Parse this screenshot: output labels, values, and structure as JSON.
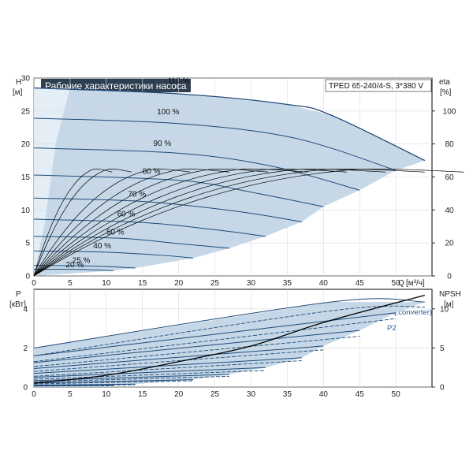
{
  "chart_data": [
    {
      "type": "line",
      "title": "Рабочие характеристики насоса",
      "model": "TPED 65-240/4-S, 3*380 V",
      "ylabel": "H",
      "yunit": "[м]",
      "ylabel_right": "eta",
      "yunit_right": "[%]",
      "xlabel": "Q",
      "xunit": "[м³/ч]",
      "xlim": [
        0,
        55
      ],
      "ylim": [
        0,
        30
      ],
      "ylim_right": [
        0,
        120
      ],
      "x_ticks": [
        "0",
        "5",
        "10",
        "15",
        "20",
        "25",
        "30",
        "35",
        "40",
        "45",
        "50"
      ],
      "y_ticks": [
        "0",
        "5",
        "10",
        "15",
        "20",
        "25",
        "30"
      ],
      "y_right_ticks": [
        "0",
        "20",
        "40",
        "60",
        "80",
        "100"
      ],
      "speed_curves": [
        {
          "label": "110 %",
          "points": [
            [
              0,
              28.5
            ],
            [
              20,
              27.6
            ],
            [
              35,
              26.0
            ],
            [
              41,
              24.4
            ],
            [
              54,
              17.5
            ]
          ]
        },
        {
          "label": "100 %",
          "points": [
            [
              0,
              23.9
            ],
            [
              20,
              23.1
            ],
            [
              36,
              20.9
            ],
            [
              50,
              16.0
            ]
          ]
        },
        {
          "label": "90 %",
          "points": [
            [
              0,
              19.4
            ],
            [
              20,
              18.6
            ],
            [
              33,
              16.6
            ],
            [
              45,
              13.0
            ]
          ]
        },
        {
          "label": "80 %",
          "points": [
            [
              0,
              15.3
            ],
            [
              20,
              14.5
            ],
            [
              30,
              12.7
            ],
            [
              40,
              10.5
            ]
          ]
        },
        {
          "label": "70 %",
          "points": [
            [
              0,
              11.8
            ],
            [
              15,
              11.3
            ],
            [
              28,
              9.8
            ],
            [
              37,
              8.2
            ]
          ]
        },
        {
          "label": "60 %",
          "points": [
            [
              0,
              8.6
            ],
            [
              15,
              8.1
            ],
            [
              25,
              7.0
            ],
            [
              32,
              6.0
            ]
          ]
        },
        {
          "label": "50 %",
          "points": [
            [
              0,
              6.0
            ],
            [
              12,
              5.7
            ],
            [
              20,
              4.9
            ],
            [
              27,
              4.2
            ]
          ]
        },
        {
          "label": "40 %",
          "points": [
            [
              0,
              3.8
            ],
            [
              10,
              3.6
            ],
            [
              18,
              3.1
            ],
            [
              22,
              2.7
            ]
          ]
        },
        {
          "label": "25 %",
          "points": [
            [
              0,
              1.6
            ],
            [
              8,
              1.5
            ],
            [
              14,
              1.2
            ]
          ]
        },
        {
          "label": "20 %",
          "points": [
            [
              0,
              1.0
            ],
            [
              6,
              1.0
            ],
            [
              11,
              0.8
            ]
          ]
        }
      ],
      "efficiency_curves_scale": [
        20,
        25,
        40,
        50,
        60,
        70,
        80,
        90,
        100,
        110
      ]
    },
    {
      "type": "line",
      "ylabel": "P",
      "yunit": "[кВт]",
      "ylabel_right": "NPSH",
      "yunit_right": "[м]",
      "xlim": [
        0,
        55
      ],
      "ylim": [
        0,
        5
      ],
      "ylim_right": [
        0,
        12.5
      ],
      "x_ticks": [
        "0",
        "5",
        "10",
        "15",
        "20",
        "25",
        "30",
        "35",
        "40",
        "45",
        "50"
      ],
      "y_ticks": [
        "0",
        "2",
        "4"
      ],
      "y_right_ticks": [
        "0",
        "5",
        "10"
      ],
      "annotations": [
        "P1 (motor+freq.converter)",
        "P2"
      ],
      "power_curves": [
        {
          "speed": "110 %",
          "p1": [
            [
              0,
              2.0
            ],
            [
              41,
              4.35
            ],
            [
              54,
              4.35
            ]
          ],
          "p2": [
            [
              0,
              1.6
            ],
            [
              41,
              3.9
            ],
            [
              54,
              4.1
            ]
          ]
        },
        {
          "speed": "100 %",
          "p1": [
            [
              0,
              1.6
            ],
            [
              50,
              3.8
            ]
          ],
          "p2": [
            [
              0,
              1.3
            ],
            [
              50,
              3.5
            ]
          ]
        },
        {
          "speed": "90 %",
          "p1": [
            [
              0,
              1.25
            ],
            [
              45,
              2.9
            ]
          ],
          "p2": [
            [
              0,
              1.05
            ],
            [
              45,
              2.6
            ]
          ]
        },
        {
          "speed": "80 %",
          "p1": [
            [
              0,
              0.95
            ],
            [
              40,
              2.1
            ]
          ],
          "p2": [
            [
              0,
              0.8
            ],
            [
              40,
              1.9
            ]
          ]
        },
        {
          "speed": "70 %",
          "p1": [
            [
              0,
              0.7
            ],
            [
              37,
              1.5
            ]
          ],
          "p2": [
            [
              0,
              0.55
            ],
            [
              37,
              1.35
            ]
          ]
        },
        {
          "speed": "60 %",
          "p1": [
            [
              0,
              0.5
            ],
            [
              32,
              1.0
            ]
          ],
          "p2": [
            [
              0,
              0.4
            ],
            [
              32,
              0.85
            ]
          ]
        },
        {
          "speed": "50 %",
          "p1": [
            [
              0,
              0.33
            ],
            [
              27,
              0.65
            ]
          ],
          "p2": [
            [
              0,
              0.27
            ],
            [
              27,
              0.55
            ]
          ]
        },
        {
          "speed": "40 %",
          "p1": [
            [
              0,
              0.2
            ],
            [
              22,
              0.38
            ]
          ],
          "p2": [
            [
              0,
              0.16
            ],
            [
              22,
              0.32
            ]
          ]
        },
        {
          "speed": "25 %",
          "p1": [
            [
              0,
              0.1
            ],
            [
              14,
              0.15
            ]
          ],
          "p2": [
            [
              0,
              0.07
            ],
            [
              14,
              0.12
            ]
          ]
        },
        {
          "speed": "20 %",
          "p1": [
            [
              0,
              0.06
            ],
            [
              11,
              0.09
            ]
          ],
          "p2": [
            [
              0,
              0.05
            ],
            [
              11,
              0.07
            ]
          ]
        }
      ],
      "npsh_curve": [
        [
          0,
          0.2
        ],
        [
          10,
          0.6
        ],
        [
          20,
          1.3
        ],
        [
          30,
          2.1
        ],
        [
          40,
          3.3
        ],
        [
          54,
          4.7
        ]
      ]
    }
  ],
  "colors": {
    "envelope_fill": "#c6d8e7",
    "envelope_edge": "#2b5079",
    "curve": "#1f4a7a",
    "efficiency": "#000000",
    "title_bg": "#2f3f52",
    "title_text": "#ffffff",
    "annotation": "#2b5b8f"
  }
}
